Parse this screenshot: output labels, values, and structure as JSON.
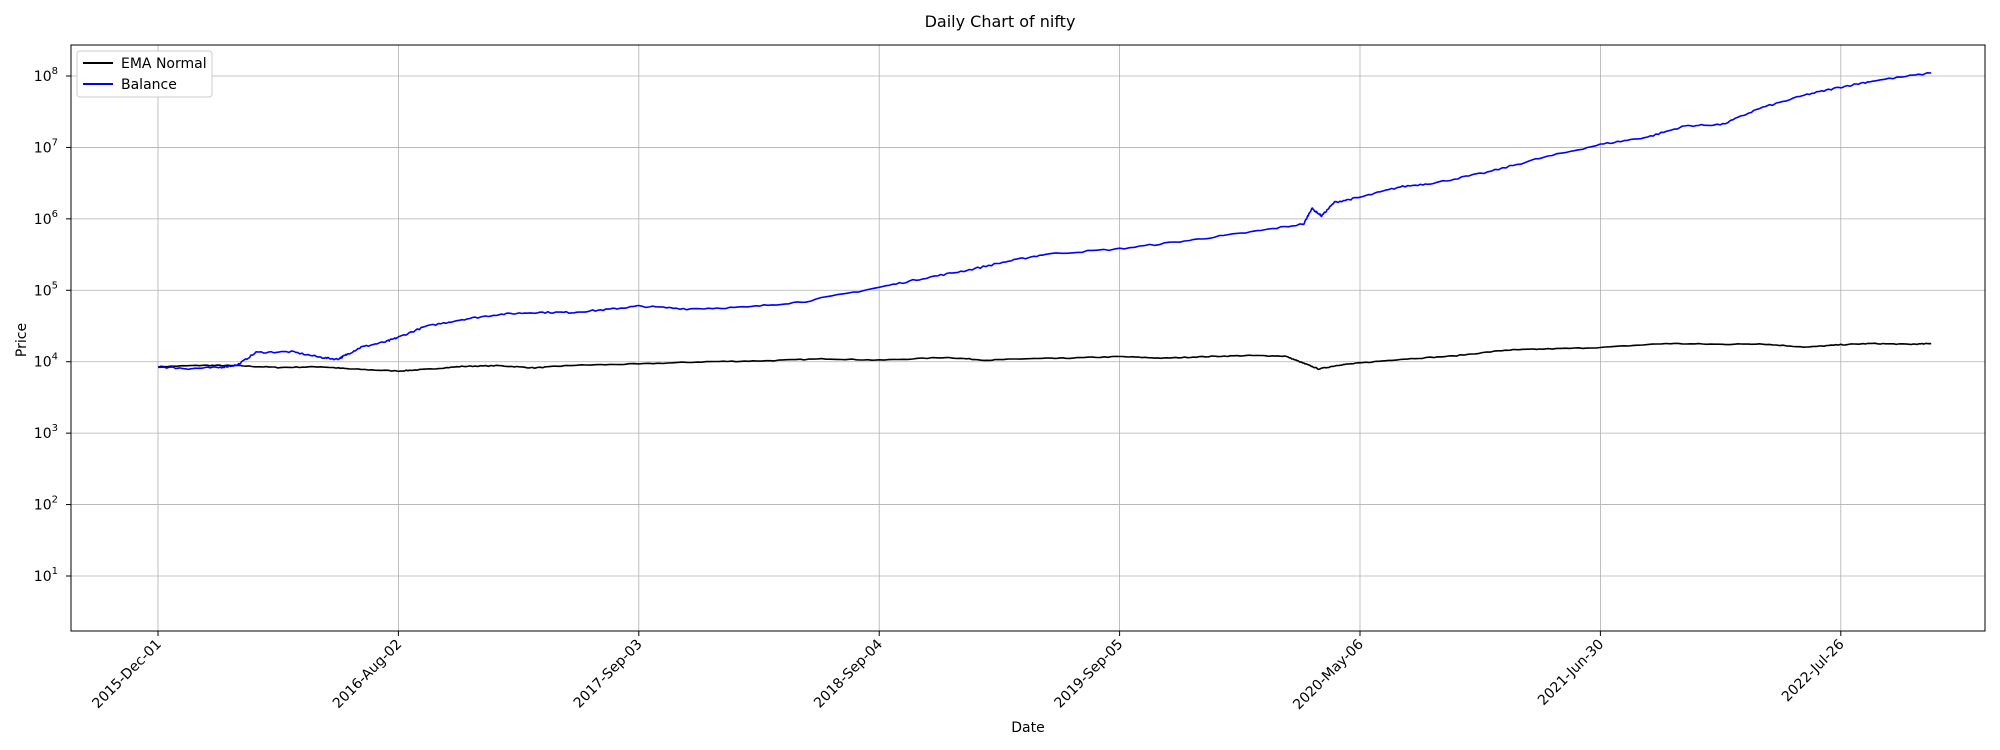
{
  "chart_data": {
    "type": "line",
    "title": "Daily Chart of nifty",
    "xlabel": "Date",
    "ylabel": "Price",
    "yscale": "log",
    "ylim": [
      2,
      300000000
    ],
    "grid": true,
    "legend_position": "top-left",
    "xticks": [
      "2015-Dec-01",
      "2016-Aug-02",
      "2017-Sep-03",
      "2018-Sep-04",
      "2019-Sep-05",
      "2020-May-06",
      "2021-Jun-30",
      "2022-Jul-26"
    ],
    "yticks": [
      {
        "value": 10,
        "base": "10",
        "exp": "1"
      },
      {
        "value": 100,
        "base": "10",
        "exp": "2"
      },
      {
        "value": 1000,
        "base": "10",
        "exp": "3"
      },
      {
        "value": 10000,
        "base": "10",
        "exp": "4"
      },
      {
        "value": 100000,
        "base": "10",
        "exp": "5"
      },
      {
        "value": 1000000,
        "base": "10",
        "exp": "6"
      },
      {
        "value": 10000000,
        "base": "10",
        "exp": "7"
      },
      {
        "value": 100000000,
        "base": "10",
        "exp": "8"
      }
    ],
    "series": [
      {
        "name": "EMA Normal",
        "color": "#000000",
        "points": [
          [
            "2015-Dec-01",
            8500
          ],
          [
            "2016-Jan-15",
            8900
          ],
          [
            "2016-Feb-20",
            8800
          ],
          [
            "2016-Apr-01",
            8300
          ],
          [
            "2016-May-15",
            8500
          ],
          [
            "2016-Jun-15",
            7900
          ],
          [
            "2016-Aug-02",
            7400
          ],
          [
            "2016-Sep-15",
            7800
          ],
          [
            "2016-Nov-15",
            8600
          ],
          [
            "2017-Jan-15",
            8800
          ],
          [
            "2017-Mar-15",
            8200
          ],
          [
            "2017-May-15",
            8900
          ],
          [
            "2017-Sep-03",
            9300
          ],
          [
            "2017-Dec-15",
            10000
          ],
          [
            "2018-Mar-15",
            10300
          ],
          [
            "2018-Jun-15",
            11000
          ],
          [
            "2018-Sep-04",
            10500
          ],
          [
            "2018-Dec-15",
            11500
          ],
          [
            "2019-Feb-15",
            10500
          ],
          [
            "2019-Apr-15",
            11000
          ],
          [
            "2019-Jun-15",
            11200
          ],
          [
            "2019-Sep-05",
            11800
          ],
          [
            "2019-Oct-20",
            11200
          ],
          [
            "2019-Dec-01",
            11800
          ],
          [
            "2020-Jan-15",
            12200
          ],
          [
            "2020-Feb-20",
            12000
          ],
          [
            "2020-Mar-10",
            9500
          ],
          [
            "2020-Mar-25",
            7900
          ],
          [
            "2020-Apr-15",
            9000
          ],
          [
            "2020-May-06",
            9600
          ],
          [
            "2020-Jul-15",
            10800
          ],
          [
            "2020-Oct-15",
            12000
          ],
          [
            "2021-Jan-15",
            14500
          ],
          [
            "2021-Mar-15",
            15000
          ],
          [
            "2021-Jun-30",
            15800
          ],
          [
            "2021-Oct-15",
            18000
          ],
          [
            "2022-Jan-15",
            17500
          ],
          [
            "2022-Mar-15",
            17800
          ],
          [
            "2022-Jun-01",
            16000
          ],
          [
            "2022-Jul-26",
            17300
          ],
          [
            "2022-Sep-15",
            18000
          ],
          [
            "2022-Nov-15",
            17500
          ],
          [
            "2022-Dec-20",
            17900
          ]
        ]
      },
      {
        "name": "Balance",
        "color": "#0000ff",
        "points": [
          [
            "2015-Dec-01",
            8500
          ],
          [
            "2016-Jan-01",
            8000
          ],
          [
            "2016-Feb-01",
            8300
          ],
          [
            "2016-Feb-20",
            9000
          ],
          [
            "2016-Mar-10",
            13500
          ],
          [
            "2016-Apr-15",
            13800
          ],
          [
            "2016-May-15",
            11500
          ],
          [
            "2016-Jun-01",
            10800
          ],
          [
            "2016-Jun-10",
            12500
          ],
          [
            "2016-Jun-25",
            16000
          ],
          [
            "2016-Jul-20",
            19000
          ],
          [
            "2016-Aug-02",
            22000
          ],
          [
            "2016-Sep-15",
            31000
          ],
          [
            "2016-Nov-15",
            39000
          ],
          [
            "2017-Jan-15",
            46000
          ],
          [
            "2017-Mar-15",
            49000
          ],
          [
            "2017-May-15",
            49000
          ],
          [
            "2017-Jul-15",
            54000
          ],
          [
            "2017-Sep-03",
            60000
          ],
          [
            "2017-Nov-15",
            55000
          ],
          [
            "2018-Feb-15",
            58000
          ],
          [
            "2018-May-15",
            70000
          ],
          [
            "2018-Sep-04",
            110000
          ],
          [
            "2018-Nov-15",
            150000
          ],
          [
            "2019-Jan-15",
            190000
          ],
          [
            "2019-Mar-15",
            250000
          ],
          [
            "2019-May-15",
            320000
          ],
          [
            "2019-Sep-05",
            380000
          ],
          [
            "2019-Nov-15",
            500000
          ],
          [
            "2020-Jan-15",
            650000
          ],
          [
            "2020-Mar-10",
            850000
          ],
          [
            "2020-Mar-18",
            1400000
          ],
          [
            "2020-Mar-28",
            1100000
          ],
          [
            "2020-Apr-10",
            1700000
          ],
          [
            "2020-May-06",
            2000000
          ],
          [
            "2020-Jul-15",
            2800000
          ],
          [
            "2020-Sep-15",
            3200000
          ],
          [
            "2020-Dec-15",
            4500000
          ],
          [
            "2021-Mar-15",
            7000000
          ],
          [
            "2021-Jun-30",
            11000000
          ],
          [
            "2021-Sep-15",
            14000000
          ],
          [
            "2021-Nov-15",
            20000000
          ],
          [
            "2022-Jan-15",
            21000000
          ],
          [
            "2022-Mar-15",
            35000000
          ],
          [
            "2022-Jun-01",
            55000000
          ],
          [
            "2022-Jul-26",
            70000000
          ],
          [
            "2022-Sep-15",
            85000000
          ],
          [
            "2022-Dec-20",
            110000000
          ]
        ]
      }
    ]
  }
}
